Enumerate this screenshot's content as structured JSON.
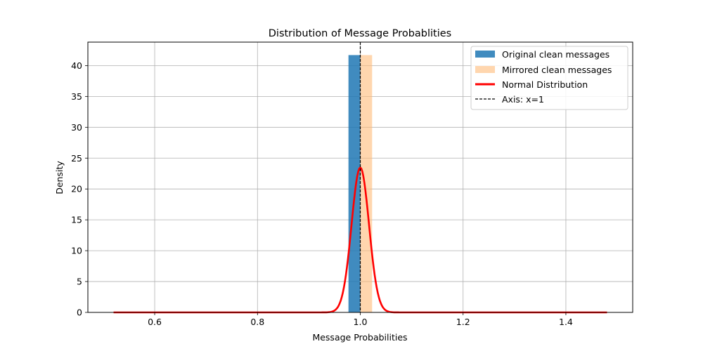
{
  "chart_data": {
    "type": "bar",
    "title": "Distribution of Message Probablities",
    "xlabel": "Message Probabilities",
    "ylabel": "Density",
    "xlim": [
      0.47,
      1.53
    ],
    "ylim": [
      0,
      43.8
    ],
    "xticks": [
      0.6,
      0.8,
      1.0,
      1.2,
      1.4
    ],
    "xtick_labels": [
      "0.6",
      "0.8",
      "1.0",
      "1.2",
      "1.4"
    ],
    "yticks": [
      0,
      5,
      10,
      15,
      20,
      25,
      30,
      35,
      40
    ],
    "ytick_labels": [
      "0",
      "5",
      "10",
      "15",
      "20",
      "25",
      "30",
      "35",
      "40"
    ],
    "grid": true,
    "legend_position": "top-right",
    "series": [
      {
        "name": "Original clean messages",
        "kind": "histogram",
        "color": "#1f77b4",
        "alpha": 0.85,
        "bins": [
          {
            "x0": 0.977,
            "x1": 1.0,
            "density": 41.7
          }
        ]
      },
      {
        "name": "Mirrored clean messages",
        "kind": "histogram",
        "color": "#ffbb78",
        "alpha": 0.6,
        "bins": [
          {
            "x0": 1.0,
            "x1": 1.023,
            "density": 41.7
          }
        ]
      },
      {
        "name": "Normal Distribution",
        "kind": "line",
        "color": "#ff0000",
        "mean": 1.0,
        "std": 0.017,
        "x_range": [
          0.52,
          1.48
        ]
      },
      {
        "name": "Axis: x=1",
        "kind": "vline",
        "color": "#000000",
        "x": 1.0,
        "dash": "dashed"
      }
    ]
  }
}
